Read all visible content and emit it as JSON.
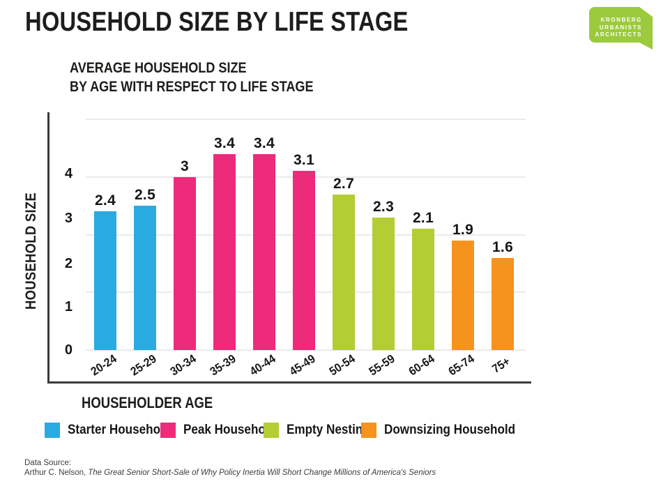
{
  "page": {
    "title": "HOUSEHOLD SIZE BY LIFE STAGE"
  },
  "logo": {
    "line1": "KRONBERG",
    "line2": "URBANISTS",
    "line3": "ARCHITECTS",
    "color": "#9BCA3C"
  },
  "subtitle": {
    "line1": "AVERAGE HOUSEHOLD SIZE",
    "line2": "BY AGE WITH RESPECT TO LIFE STAGE"
  },
  "chart_data": {
    "type": "bar",
    "title": "AVERAGE HOUSEHOLD SIZE BY AGE WITH RESPECT TO LIFE STAGE",
    "categories": [
      "20-24",
      "25-29",
      "30-34",
      "35-39",
      "40-44",
      "45-49",
      "50-54",
      "55-59",
      "60-64",
      "65-74",
      "75+"
    ],
    "values": [
      2.4,
      2.5,
      3,
      3.4,
      3.4,
      3.1,
      2.7,
      2.3,
      2.1,
      1.9,
      1.6
    ],
    "groups": [
      {
        "label": "Starter Household",
        "color": "#29ABE2",
        "categories": [
          "20-24",
          "25-29"
        ]
      },
      {
        "label": "Peak Household",
        "color": "#EE2A7B",
        "categories": [
          "30-34",
          "35-39",
          "40-44",
          "45-49"
        ]
      },
      {
        "label": "Empty Nesting",
        "color": "#B3CD35",
        "categories": [
          "50-54",
          "55-59",
          "60-64"
        ]
      },
      {
        "label": "Downsizing Household",
        "color": "#F6921E",
        "categories": [
          "65-74",
          "75+"
        ]
      }
    ],
    "xlabel": "HOUSEHOLDER AGE",
    "ylabel": "HOUSEHOLD SIZE",
    "yticks": [
      4,
      3,
      2,
      1,
      0
    ],
    "ylim": [
      0,
      4
    ],
    "grid": true,
    "legend_position": "bottom"
  },
  "source": {
    "label": "Data Source:",
    "author": "Arthur C. Nelson,",
    "work": "The Great Senior Short-Sale of Why Policy Inertia Will Short Change Millions of America's Seniors"
  }
}
